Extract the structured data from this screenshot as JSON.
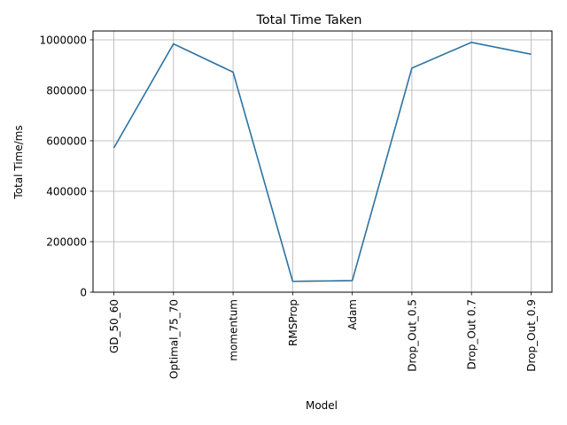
{
  "chart_data": {
    "type": "line",
    "title": "Total Time Taken",
    "xlabel": "Model",
    "ylabel": "Total Time/ms",
    "categories": [
      "GD_50_60",
      "Optimal_75_70",
      "momentum",
      "RMSProp",
      "Adam",
      "Drop_Out_0.5",
      "Drop_Out 0.7",
      "Drop_Out_0.9"
    ],
    "series": [
      {
        "values": [
          572000,
          984000,
          872000,
          43000,
          46000,
          888000,
          990000,
          943000
        ],
        "color": "#ff7f0e"
      },
      {
        "values": [
          572000,
          984000,
          872000,
          43000,
          46000,
          888000,
          990000,
          943000
        ],
        "color": "#1f77b4"
      }
    ],
    "yticks": [
      0,
      200000,
      400000,
      600000,
      800000,
      1000000
    ],
    "ylim": [
      0,
      1035000
    ],
    "grid": true
  }
}
